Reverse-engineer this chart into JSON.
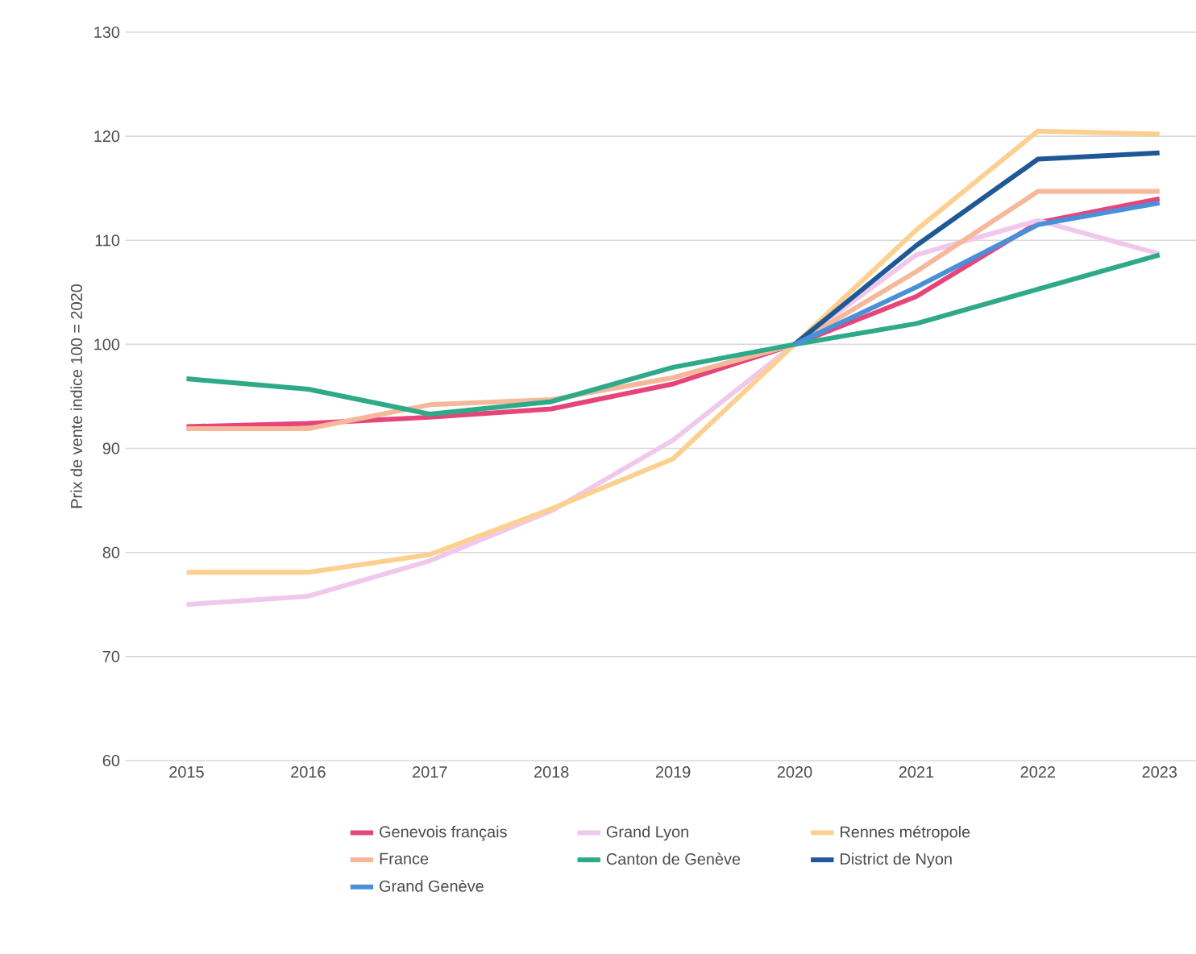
{
  "chart_data": {
    "type": "line",
    "ylabel": "Prix de vente indice 100 = 2020",
    "x": [
      2015,
      2016,
      2017,
      2018,
      2019,
      2020,
      2021,
      2022,
      2023
    ],
    "xlim": [
      2014.5,
      2023.3
    ],
    "xticks": [
      2015,
      2016,
      2017,
      2018,
      2019,
      2020,
      2021,
      2022,
      2023
    ],
    "ylim": [
      60,
      130
    ],
    "yticks": [
      60,
      70,
      80,
      90,
      100,
      110,
      120,
      130
    ],
    "grid": "y",
    "legend": "bottom",
    "series": [
      {
        "name": "Genevois français",
        "color": "#e6457a",
        "values": [
          92.1,
          92.4,
          93.0,
          93.8,
          96.2,
          100,
          104.6,
          111.7,
          114.0
        ]
      },
      {
        "name": "Grand Lyon",
        "color": "#f0c8ec",
        "values": [
          75.0,
          75.8,
          79.2,
          84.0,
          90.8,
          100,
          108.6,
          111.9,
          108.7
        ]
      },
      {
        "name": "Rennes métropole",
        "color": "#fdd08f",
        "values": [
          78.1,
          78.1,
          79.8,
          84.2,
          89.0,
          100,
          111.0,
          120.5,
          120.2
        ]
      },
      {
        "name": "France",
        "color": "#f5b89a",
        "values": [
          91.9,
          91.9,
          94.2,
          94.7,
          96.8,
          100,
          107.0,
          114.7,
          114.7
        ]
      },
      {
        "name": "Canton de Genève",
        "color": "#2eaa88",
        "values": [
          96.7,
          95.7,
          93.3,
          94.5,
          97.8,
          100,
          102.0,
          105.3,
          108.6
        ]
      },
      {
        "name": "District de Nyon",
        "color": "#1f5896",
        "values": [
          null,
          null,
          null,
          null,
          null,
          100,
          109.5,
          117.8,
          118.4
        ]
      },
      {
        "name": "Grand Genève",
        "color": "#4a90d9",
        "values": [
          null,
          null,
          null,
          null,
          null,
          100,
          105.5,
          111.5,
          113.6
        ]
      }
    ]
  }
}
